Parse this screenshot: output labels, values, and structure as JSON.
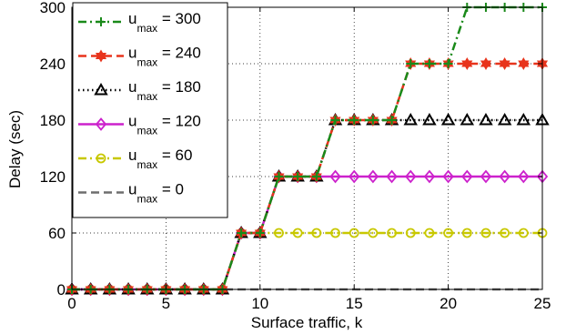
{
  "chart_data": {
    "type": "line",
    "xlabel": "Surface traffic, k",
    "ylabel": "Delay (sec)",
    "xlim": [
      0,
      25
    ],
    "ylim": [
      0,
      300
    ],
    "xticks": [
      0,
      5,
      10,
      15,
      20,
      25
    ],
    "yticks": [
      0,
      60,
      120,
      180,
      240,
      300
    ],
    "grid": "dotted",
    "legend_position": "top-left",
    "x": [
      0,
      1,
      2,
      3,
      4,
      5,
      6,
      7,
      8,
      9,
      10,
      11,
      12,
      13,
      14,
      15,
      16,
      17,
      18,
      19,
      20,
      21,
      22,
      23,
      24,
      25
    ],
    "series": [
      {
        "name": "u_max = 300",
        "legend": {
          "base": "u",
          "sub": "max",
          "rest": " = 300"
        },
        "color": "#1a8a1a",
        "dash": "dashdot",
        "marker": "plus",
        "values": [
          0,
          0,
          0,
          0,
          0,
          0,
          0,
          0,
          0,
          60,
          60,
          120,
          120,
          120,
          180,
          180,
          180,
          180,
          240,
          240,
          240,
          300,
          300,
          300,
          300,
          300
        ]
      },
      {
        "name": "u_max = 240",
        "legend": {
          "base": "u",
          "sub": "max",
          "rest": " = 240"
        },
        "color": "#e8341c",
        "dash": "dashed",
        "marker": "hexagram",
        "values": [
          0,
          0,
          0,
          0,
          0,
          0,
          0,
          0,
          0,
          60,
          60,
          120,
          120,
          120,
          180,
          180,
          180,
          180,
          240,
          240,
          240,
          240,
          240,
          240,
          240,
          240
        ]
      },
      {
        "name": "u_max = 180",
        "legend": {
          "base": "u",
          "sub": "max",
          "rest": " = 180"
        },
        "color": "#000000",
        "dash": "dotted",
        "marker": "triangle",
        "values": [
          0,
          0,
          0,
          0,
          0,
          0,
          0,
          0,
          0,
          60,
          60,
          120,
          120,
          120,
          180,
          180,
          180,
          180,
          180,
          180,
          180,
          180,
          180,
          180,
          180,
          180
        ]
      },
      {
        "name": "u_max = 120",
        "legend": {
          "base": "u",
          "sub": "max",
          "rest": " = 120"
        },
        "color": "#cc22cc",
        "dash": "solid",
        "marker": "diamond",
        "values": [
          0,
          0,
          0,
          0,
          0,
          0,
          0,
          0,
          0,
          60,
          60,
          120,
          120,
          120,
          120,
          120,
          120,
          120,
          120,
          120,
          120,
          120,
          120,
          120,
          120,
          120
        ]
      },
      {
        "name": "u_max = 60",
        "legend": {
          "base": "u",
          "sub": "max",
          "rest": " = 60"
        },
        "color": "#c8c800",
        "dash": "dashdot",
        "marker": "circle",
        "values": [
          0,
          0,
          0,
          0,
          0,
          0,
          0,
          0,
          0,
          60,
          60,
          60,
          60,
          60,
          60,
          60,
          60,
          60,
          60,
          60,
          60,
          60,
          60,
          60,
          60,
          60
        ]
      },
      {
        "name": "u_max = 0",
        "legend": {
          "base": "u",
          "sub": "max",
          "rest": " = 0"
        },
        "color": "#6e6e6e",
        "dash": "dashed",
        "marker": "none",
        "values": [
          0,
          0,
          0,
          0,
          0,
          0,
          0,
          0,
          0,
          0,
          0,
          0,
          0,
          0,
          0,
          0,
          0,
          0,
          0,
          0,
          0,
          0,
          0,
          0,
          0,
          0
        ]
      }
    ]
  }
}
